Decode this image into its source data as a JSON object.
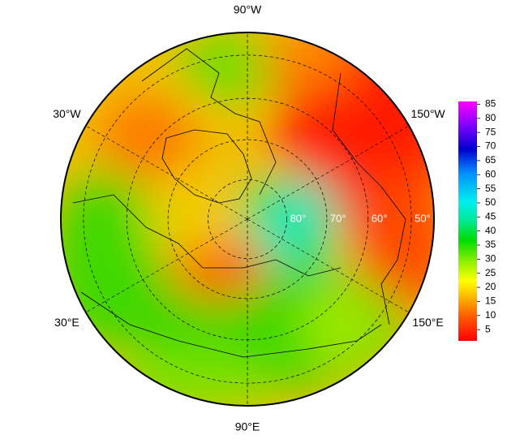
{
  "map": {
    "type": "polar-map",
    "lon_ticks": [
      {
        "value": -90,
        "label": "90°W"
      },
      {
        "value": -30,
        "label": "30°W"
      },
      {
        "value": -150,
        "label": "150°W"
      },
      {
        "value": 30,
        "label": "30°E"
      },
      {
        "value": 150,
        "label": "150°E"
      },
      {
        "value": 90,
        "label": "90°E"
      }
    ],
    "lat_ticks": [
      {
        "value": 80,
        "label": "80°"
      },
      {
        "value": 70,
        "label": "70°"
      },
      {
        "value": 60,
        "label": "60°"
      },
      {
        "value": 50,
        "label": "50°"
      }
    ],
    "lat_lim": [
      90,
      45
    ],
    "colorbar": {
      "lim": [
        1,
        86
      ],
      "ticks": [
        5,
        10,
        15,
        20,
        25,
        30,
        35,
        40,
        45,
        50,
        55,
        60,
        65,
        70,
        75,
        80,
        85
      ]
    }
  }
}
